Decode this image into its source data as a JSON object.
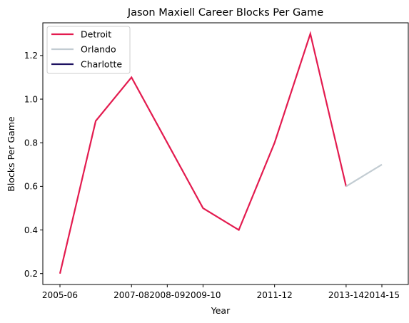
{
  "chart_data": {
    "type": "line",
    "title": "Jason Maxiell Career Blocks Per Game",
    "xlabel": "Year",
    "ylabel": "Blocks Per Game",
    "x": [
      "2005-06",
      "2006-07",
      "2007-08",
      "2008-09",
      "2009-10",
      "2010-11",
      "2011-12",
      "2012-13",
      "2013-14",
      "2014-15"
    ],
    "x_tick_labels": [
      "2005-06",
      "2007-08",
      "2008-09",
      "2009-10",
      "2011-12",
      "2013-14",
      "2014-15"
    ],
    "ylim": [
      0.15,
      1.35
    ],
    "y_ticks": [
      "0.2",
      "0.4",
      "0.6",
      "0.8",
      "1.0",
      "1.2"
    ],
    "grid": false,
    "legend_position": "top-left",
    "series": [
      {
        "name": "Detroit",
        "color": "#e31b4f",
        "points": [
          {
            "x": "2005-06",
            "y": 0.2
          },
          {
            "x": "2006-07",
            "y": 0.9
          },
          {
            "x": "2007-08",
            "y": 1.1
          },
          {
            "x": "2008-09",
            "y": 0.8
          },
          {
            "x": "2009-10",
            "y": 0.5
          },
          {
            "x": "2010-11",
            "y": 0.4
          },
          {
            "x": "2011-12",
            "y": 0.8
          },
          {
            "x": "2012-13",
            "y": 1.3
          },
          {
            "x": "2013-14",
            "y": 0.6
          }
        ]
      },
      {
        "name": "Orlando",
        "color": "#c2ccd2",
        "points": [
          {
            "x": "2013-14",
            "y": 0.6
          },
          {
            "x": "2014-15",
            "y": 0.7
          }
        ]
      },
      {
        "name": "Charlotte",
        "color": "#1d1160",
        "points": []
      }
    ]
  }
}
